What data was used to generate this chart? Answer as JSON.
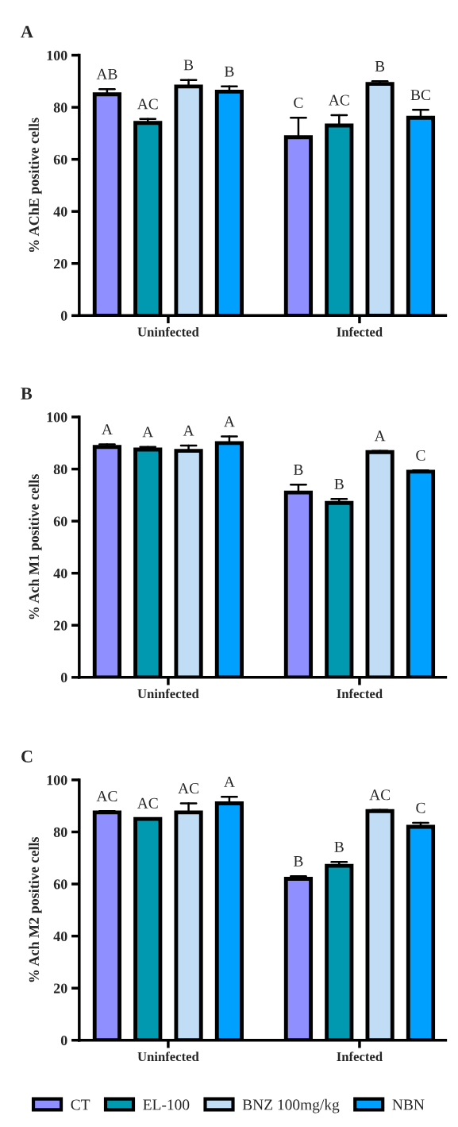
{
  "chart_data": [
    {
      "type": "bar",
      "title": "A",
      "ylabel": "% AChE positive cells",
      "categories": [
        "Uninfected",
        "Infected"
      ],
      "ylim": [
        0,
        100
      ],
      "yticks": [
        0,
        20,
        40,
        60,
        80,
        100
      ],
      "grid": false,
      "legend": false,
      "series": [
        {
          "color": "#8f8fff",
          "values": [
            85,
            68.5
          ],
          "errors": [
            [
              85,
              87
            ],
            [
              68.5,
              76
            ]
          ],
          "value_labels": [
            "AB",
            "C"
          ]
        },
        {
          "color": "#0099b0",
          "values": [
            74,
            73
          ],
          "errors": [
            [
              74,
              75.5
            ],
            [
              73,
              77
            ]
          ],
          "value_labels": [
            "AC",
            "AC"
          ]
        },
        {
          "color": "#c0ddf5",
          "values": [
            88,
            89
          ],
          "errors": [
            [
              88,
              90.5
            ],
            [
              89,
              90
            ]
          ],
          "value_labels": [
            "B",
            "B"
          ]
        },
        {
          "color": "#00a0ff",
          "values": [
            86,
            76
          ],
          "errors": [
            [
              86,
              88
            ],
            [
              76,
              79
            ]
          ],
          "value_labels": [
            "B",
            "BC"
          ]
        }
      ]
    },
    {
      "type": "bar",
      "title": "B",
      "ylabel": "% Ach M1 positive cells",
      "categories": [
        "Uninfected",
        "Infected"
      ],
      "ylim": [
        0,
        100
      ],
      "yticks": [
        0,
        20,
        40,
        60,
        80,
        100
      ],
      "grid": false,
      "legend": false,
      "series": [
        {
          "color": "#8f8fff",
          "values": [
            88.5,
            71
          ],
          "errors": [
            [
              88.5,
              89.5
            ],
            [
              71,
              74
            ]
          ],
          "value_labels": [
            "A",
            "B"
          ]
        },
        {
          "color": "#0099b0",
          "values": [
            87.5,
            67
          ],
          "errors": [
            [
              87.5,
              88.5
            ],
            [
              67,
              68.5
            ]
          ],
          "value_labels": [
            "A",
            "B"
          ]
        },
        {
          "color": "#c0ddf5",
          "values": [
            87,
            86.5
          ],
          "errors": [
            [
              87,
              89
            ],
            [
              86.5,
              87
            ]
          ],
          "value_labels": [
            "A",
            "A"
          ]
        },
        {
          "color": "#00a0ff",
          "values": [
            90,
            79
          ],
          "errors": [
            [
              90,
              92.5
            ],
            [
              79,
              79.5
            ]
          ],
          "value_labels": [
            "A",
            "C"
          ]
        }
      ]
    },
    {
      "type": "bar",
      "title": "C",
      "ylabel": "% Ach M2 positive cells",
      "categories": [
        "Uninfected",
        "Infected"
      ],
      "ylim": [
        0,
        100
      ],
      "yticks": [
        0,
        20,
        40,
        60,
        80,
        100
      ],
      "grid": false,
      "legend": "bottom",
      "series": [
        {
          "name": "CT",
          "color": "#8f8fff",
          "values": [
            87.5,
            62
          ],
          "errors": [
            [
              87.5,
              88
            ],
            [
              62,
              63
            ]
          ],
          "value_labels": [
            "AC",
            "B"
          ]
        },
        {
          "name": "EL-100",
          "color": "#0099b0",
          "values": [
            85,
            67
          ],
          "errors": [
            [
              85,
              85.3
            ],
            [
              67,
              68.5
            ]
          ],
          "value_labels": [
            "AC",
            "B"
          ]
        },
        {
          "name": "BNZ 100mg/kg",
          "color": "#c0ddf5",
          "values": [
            87.5,
            88
          ],
          "errors": [
            [
              87.5,
              91
            ],
            [
              88,
              88.5
            ]
          ],
          "value_labels": [
            "AC",
            "AC"
          ]
        },
        {
          "name": "NBN",
          "color": "#00a0ff",
          "values": [
            91,
            82
          ],
          "errors": [
            [
              91,
              93.5
            ],
            [
              82,
              83.5
            ]
          ],
          "value_labels": [
            "A",
            "C"
          ]
        }
      ]
    }
  ]
}
